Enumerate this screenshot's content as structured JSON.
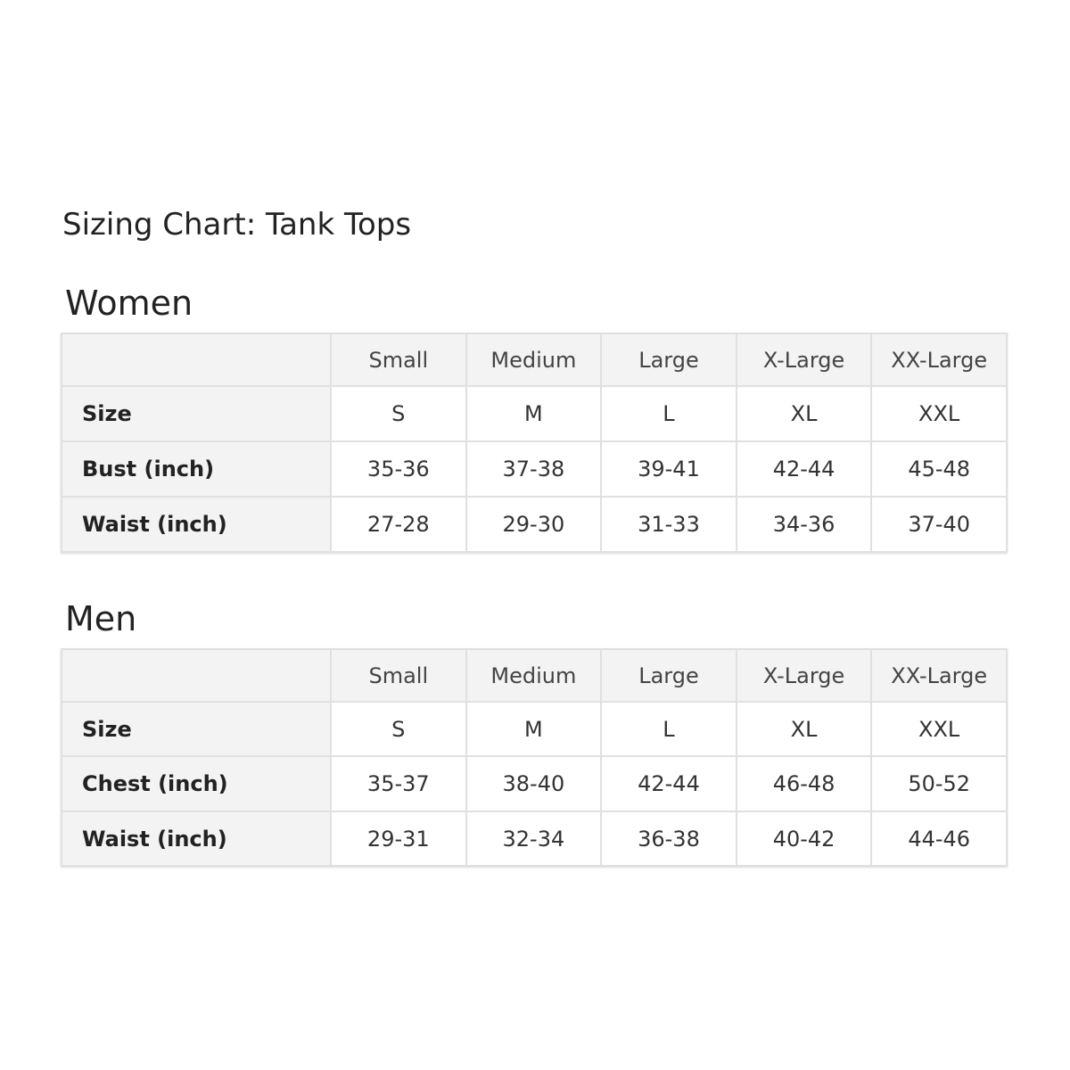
{
  "title": "Sizing Chart: Tank Tops",
  "tables": [
    {
      "heading": "Women",
      "columns": [
        "",
        "Small",
        "Medium",
        "Large",
        "X-Large",
        "XX-Large"
      ],
      "rows": [
        {
          "label": "Size",
          "values": [
            "S",
            "M",
            "L",
            "XL",
            "XXL"
          ]
        },
        {
          "label": "Bust (inch)",
          "values": [
            "35-36",
            "37-38",
            "39-41",
            "42-44",
            "45-48"
          ]
        },
        {
          "label": "Waist (inch)",
          "values": [
            "27-28",
            "29-30",
            "31-33",
            "34-36",
            "37-40"
          ]
        }
      ]
    },
    {
      "heading": "Men",
      "columns": [
        "",
        "Small",
        "Medium",
        "Large",
        "X-Large",
        "XX-Large"
      ],
      "rows": [
        {
          "label": "Size",
          "values": [
            "S",
            "M",
            "L",
            "XL",
            "XXL"
          ]
        },
        {
          "label": "Chest (inch)",
          "values": [
            "35-37",
            "38-40",
            "42-44",
            "46-48",
            "50-52"
          ]
        },
        {
          "label": "Waist (inch)",
          "values": [
            "29-31",
            "32-34",
            "36-38",
            "40-42",
            "44-46"
          ]
        }
      ]
    }
  ]
}
